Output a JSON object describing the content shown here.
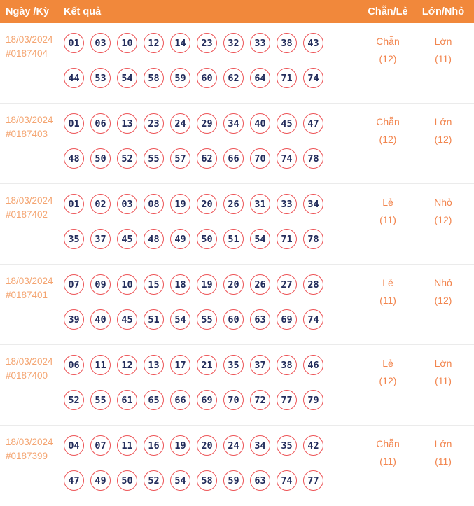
{
  "header": {
    "columns": [
      {
        "label": "Ngày /Kỳ"
      },
      {
        "label": "Kết quả"
      },
      {
        "label": "Chẵn/Lẻ"
      },
      {
        "label": "Lớn/Nhỏ"
      }
    ]
  },
  "colors": {
    "header_bg": "#F1883B",
    "header_text": "#FFFFFF",
    "date_text": "#F4A470",
    "ball_border": "#ED5356",
    "ball_number": "#222C5B",
    "stat_text": "#F2854E",
    "row_divider": "#EBEBEB"
  },
  "rows": [
    {
      "date": "18/03/2024",
      "draw_id": "#0187404",
      "numbers_line1": [
        "01",
        "03",
        "10",
        "12",
        "14",
        "23",
        "32",
        "33",
        "38",
        "43"
      ],
      "numbers_line2": [
        "44",
        "53",
        "54",
        "58",
        "59",
        "60",
        "62",
        "64",
        "71",
        "74"
      ],
      "even_odd": {
        "label": "Chẵn",
        "count": "(12)"
      },
      "big_small": {
        "label": "Lớn",
        "count": "(11)"
      }
    },
    {
      "date": "18/03/2024",
      "draw_id": "#0187403",
      "numbers_line1": [
        "01",
        "06",
        "13",
        "23",
        "24",
        "29",
        "34",
        "40",
        "45",
        "47"
      ],
      "numbers_line2": [
        "48",
        "50",
        "52",
        "55",
        "57",
        "62",
        "66",
        "70",
        "74",
        "78"
      ],
      "even_odd": {
        "label": "Chẵn",
        "count": "(12)"
      },
      "big_small": {
        "label": "Lớn",
        "count": "(12)"
      }
    },
    {
      "date": "18/03/2024",
      "draw_id": "#0187402",
      "numbers_line1": [
        "01",
        "02",
        "03",
        "08",
        "19",
        "20",
        "26",
        "31",
        "33",
        "34"
      ],
      "numbers_line2": [
        "35",
        "37",
        "45",
        "48",
        "49",
        "50",
        "51",
        "54",
        "71",
        "78"
      ],
      "even_odd": {
        "label": "Lẻ",
        "count": "(11)"
      },
      "big_small": {
        "label": "Nhỏ",
        "count": "(12)"
      }
    },
    {
      "date": "18/03/2024",
      "draw_id": "#0187401",
      "numbers_line1": [
        "07",
        "09",
        "10",
        "15",
        "18",
        "19",
        "20",
        "26",
        "27",
        "28"
      ],
      "numbers_line2": [
        "39",
        "40",
        "45",
        "51",
        "54",
        "55",
        "60",
        "63",
        "69",
        "74"
      ],
      "even_odd": {
        "label": "Lẻ",
        "count": "(11)"
      },
      "big_small": {
        "label": "Nhỏ",
        "count": "(12)"
      }
    },
    {
      "date": "18/03/2024",
      "draw_id": "#0187400",
      "numbers_line1": [
        "06",
        "11",
        "12",
        "13",
        "17",
        "21",
        "35",
        "37",
        "38",
        "46"
      ],
      "numbers_line2": [
        "52",
        "55",
        "61",
        "65",
        "66",
        "69",
        "70",
        "72",
        "77",
        "79"
      ],
      "even_odd": {
        "label": "Lẻ",
        "count": "(12)"
      },
      "big_small": {
        "label": "Lớn",
        "count": "(11)"
      }
    },
    {
      "date": "18/03/2024",
      "draw_id": "#0187399",
      "numbers_line1": [
        "04",
        "07",
        "11",
        "16",
        "19",
        "20",
        "24",
        "34",
        "35",
        "42"
      ],
      "numbers_line2": [
        "47",
        "49",
        "50",
        "52",
        "54",
        "58",
        "59",
        "63",
        "74",
        "77"
      ],
      "even_odd": {
        "label": "Chẵn",
        "count": "(11)"
      },
      "big_small": {
        "label": "Lớn",
        "count": "(11)"
      }
    }
  ]
}
